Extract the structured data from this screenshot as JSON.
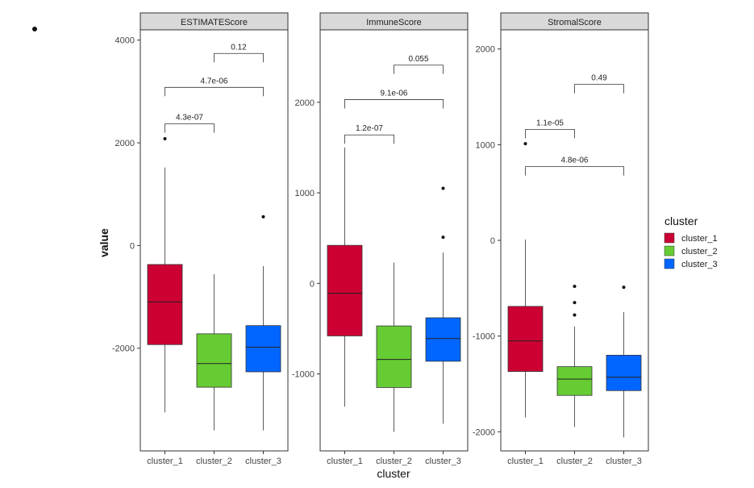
{
  "figure": {
    "ylabel": "value",
    "xlabel": "cluster",
    "legend_title": "cluster",
    "legend_position": "right"
  },
  "colors": {
    "cluster_1": "#cc0033",
    "cluster_2": "#66cc33",
    "cluster_3": "#0066ff",
    "strip": "#d9d9d9"
  },
  "chart_data": [
    {
      "type": "box",
      "title": "ESTIMATEScore",
      "categories": [
        "cluster_1",
        "cluster_2",
        "cluster_3"
      ],
      "ylim": [
        -4000,
        4200
      ],
      "yticks": [
        -2000,
        0,
        2000,
        4000
      ],
      "boxes": [
        {
          "name": "cluster_1",
          "min": -3250,
          "q1": -1930,
          "median": -1100,
          "q3": -370,
          "max": 1520,
          "outliers": [
            2080
          ]
        },
        {
          "name": "cluster_2",
          "min": -3600,
          "q1": -2760,
          "median": -2300,
          "q3": -1720,
          "max": -560,
          "outliers": []
        },
        {
          "name": "cluster_3",
          "min": -3600,
          "q1": -2460,
          "median": -1980,
          "q3": -1560,
          "max": -400,
          "outliers": [
            560
          ]
        }
      ],
      "annotations": [
        {
          "from": "cluster_1",
          "to": "cluster_2",
          "label": "4.3e-07",
          "y": 2370
        },
        {
          "from": "cluster_1",
          "to": "cluster_3",
          "label": "4.7e-06",
          "y": 3080
        },
        {
          "from": "cluster_2",
          "to": "cluster_3",
          "label": "0.12",
          "y": 3740
        }
      ]
    },
    {
      "type": "box",
      "title": "ImmuneScore",
      "categories": [
        "cluster_1",
        "cluster_2",
        "cluster_3"
      ],
      "ylim": [
        -1850,
        2800
      ],
      "yticks": [
        -1000,
        0,
        1000,
        2000
      ],
      "boxes": [
        {
          "name": "cluster_1",
          "min": -1360,
          "q1": -580,
          "median": -110,
          "q3": 420,
          "max": 1500,
          "outliers": []
        },
        {
          "name": "cluster_2",
          "min": -1640,
          "q1": -1150,
          "median": -840,
          "q3": -470,
          "max": 230,
          "outliers": []
        },
        {
          "name": "cluster_3",
          "min": -1550,
          "q1": -860,
          "median": -610,
          "q3": -380,
          "max": 340,
          "outliers": [
            510,
            1050
          ]
        }
      ],
      "annotations": [
        {
          "from": "cluster_1",
          "to": "cluster_2",
          "label": "1.2e-07",
          "y": 1640
        },
        {
          "from": "cluster_1",
          "to": "cluster_3",
          "label": "9.1e-06",
          "y": 2030
        },
        {
          "from": "cluster_2",
          "to": "cluster_3",
          "label": "0.055",
          "y": 2410
        }
      ]
    },
    {
      "type": "box",
      "title": "StromalScore",
      "categories": [
        "cluster_1",
        "cluster_2",
        "cluster_3"
      ],
      "ylim": [
        -2200,
        2200
      ],
      "yticks": [
        -2000,
        -1000,
        0,
        1000,
        2000
      ],
      "boxes": [
        {
          "name": "cluster_1",
          "min": -1850,
          "q1": -1370,
          "median": -1050,
          "q3": -690,
          "max": 10,
          "outliers": [
            1010
          ]
        },
        {
          "name": "cluster_2",
          "min": -1950,
          "q1": -1620,
          "median": -1450,
          "q3": -1320,
          "max": -900,
          "outliers": [
            -480,
            -650,
            -780
          ]
        },
        {
          "name": "cluster_3",
          "min": -2060,
          "q1": -1570,
          "median": -1430,
          "q3": -1200,
          "max": -750,
          "outliers": [
            -490
          ]
        }
      ],
      "annotations": [
        {
          "from": "cluster_1",
          "to": "cluster_2",
          "label": "1.1e-05",
          "y": 1160
        },
        {
          "from": "cluster_1",
          "to": "cluster_3",
          "label": "4.8e-06",
          "y": 770
        },
        {
          "from": "cluster_2",
          "to": "cluster_3",
          "label": "0.49",
          "y": 1630
        }
      ]
    }
  ]
}
